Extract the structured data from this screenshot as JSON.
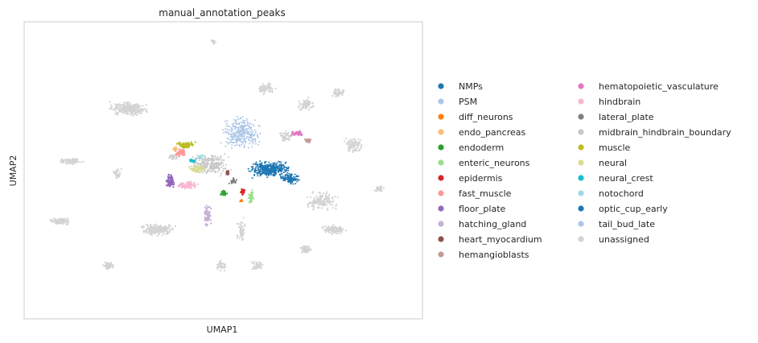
{
  "chart_data": {
    "type": "scatter",
    "title": "manual_annotation_peaks",
    "xlabel": "UMAP1",
    "ylabel": "UMAP2",
    "grid": false,
    "ticks": false,
    "legend_placement": "right, two columns",
    "series": [
      {
        "name": "NMPs",
        "color": "#1f77b4"
      },
      {
        "name": "PSM",
        "color": "#aec7e8"
      },
      {
        "name": "diff_neurons",
        "color": "#ff7f0e"
      },
      {
        "name": "endo_pancreas",
        "color": "#ffbb78"
      },
      {
        "name": "endoderm",
        "color": "#2ca02c"
      },
      {
        "name": "enteric_neurons",
        "color": "#98df8a"
      },
      {
        "name": "epidermis",
        "color": "#d62728"
      },
      {
        "name": "fast_muscle",
        "color": "#ff9896"
      },
      {
        "name": "floor_plate",
        "color": "#9467bd"
      },
      {
        "name": "hatching_gland",
        "color": "#c5b0d5"
      },
      {
        "name": "heart_myocardium",
        "color": "#8c564b"
      },
      {
        "name": "hemangioblasts",
        "color": "#c49c94"
      },
      {
        "name": "hematopoietic_vasculature",
        "color": "#e377c2"
      },
      {
        "name": "hindbrain",
        "color": "#f7b6d2"
      },
      {
        "name": "lateral_plate",
        "color": "#7f7f7f"
      },
      {
        "name": "midbrain_hindbrain_boundary",
        "color": "#c7c7c7"
      },
      {
        "name": "muscle",
        "color": "#bcbd22"
      },
      {
        "name": "neural",
        "color": "#dbdb8d"
      },
      {
        "name": "neural_crest",
        "color": "#17becf"
      },
      {
        "name": "notochord",
        "color": "#9edae5"
      },
      {
        "name": "optic_cup_early",
        "color": "#1f77b4"
      },
      {
        "name": "tail_bud_late",
        "color": "#aec7e8"
      },
      {
        "name": "unassigned",
        "color": "#d3d3d3"
      }
    ]
  }
}
